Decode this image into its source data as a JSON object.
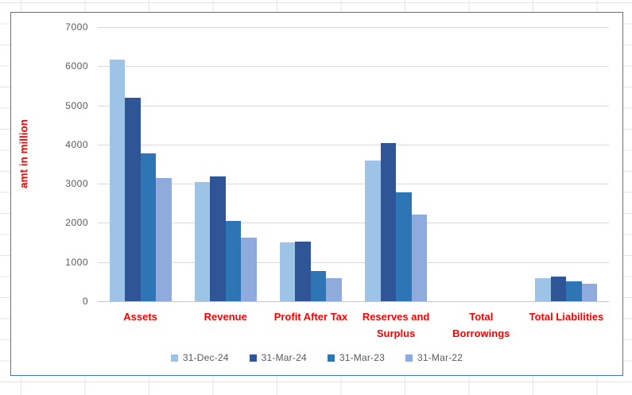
{
  "colors": {
    "category_label": "#FF0000",
    "axis_text": "#595959",
    "chart_border": "#4472C4",
    "plot_gridline": "#D9D9D9",
    "sheet_gridline": "#E4E4E4"
  },
  "chart_data": {
    "type": "bar",
    "title": "",
    "xlabel": "",
    "ylabel": "amt in million",
    "ylim": [
      0,
      7000
    ],
    "ytick_step": 1000,
    "yticks": [
      0,
      1000,
      2000,
      3000,
      4000,
      5000,
      6000,
      7000
    ],
    "grid": "horizontal",
    "legend_position": "bottom",
    "categories": [
      "Assets",
      "Revenue",
      "Profit After Tax",
      "Reserves and Surplus",
      "Total Borrowings",
      "Total Liabilities"
    ],
    "series": [
      {
        "name": "31-Dec-24",
        "color": "#9DC3E6",
        "values": [
          6170,
          3040,
          1500,
          3595,
          0,
          580
        ]
      },
      {
        "name": "31-Mar-24",
        "color": "#2F5597",
        "values": [
          5190,
          3190,
          1520,
          4040,
          0,
          630
        ]
      },
      {
        "name": "31-Mar-23",
        "color": "#2E75B6",
        "values": [
          3780,
          2040,
          780,
          2790,
          0,
          500
        ]
      },
      {
        "name": "31-Mar-22",
        "color": "#8FAADC",
        "values": [
          3150,
          1620,
          595,
          2215,
          0,
          440
        ]
      }
    ]
  }
}
